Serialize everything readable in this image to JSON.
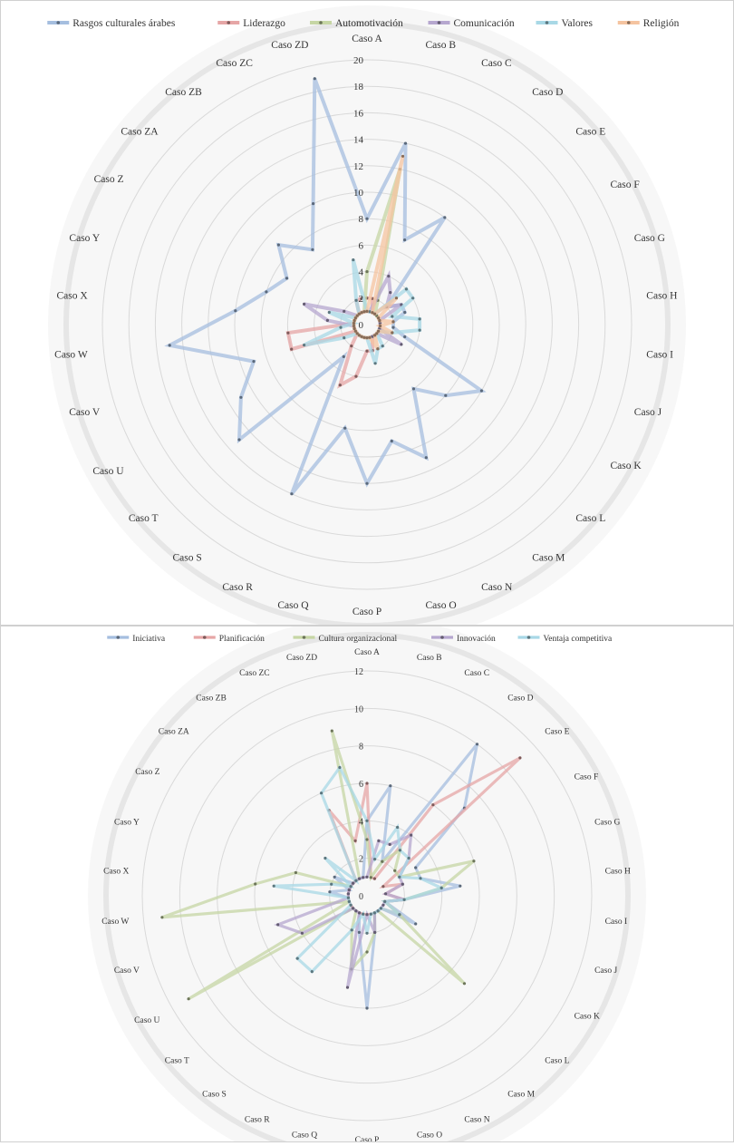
{
  "cases": [
    "Caso A",
    "Caso B",
    "Caso C",
    "Caso D",
    "Caso E",
    "Caso F",
    "Caso G",
    "Caso H",
    "Caso I",
    "Caso J",
    "Caso K",
    "Caso L",
    "Caso M",
    "Caso N",
    "Caso O",
    "Caso P",
    "Caso Q",
    "Caso R",
    "Caso S",
    "Caso T",
    "Caso U",
    "Caso V",
    "Caso W",
    "Caso X",
    "Caso Y",
    "Caso Z",
    "Caso ZA",
    "Caso ZB",
    "Caso ZC",
    "Caso ZD"
  ],
  "chart_data": [
    {
      "type": "radar",
      "rmax": 20,
      "ticks": [
        0,
        2,
        4,
        6,
        8,
        10,
        12,
        14,
        16,
        18,
        20
      ],
      "grid": true,
      "legend_position": "top",
      "series": [
        {
          "name": "Rasgos culturales árabes",
          "color": "#a5bedf",
          "values": [
            8,
            14,
            7,
            10,
            2,
            3,
            3,
            2,
            2,
            3,
            10,
            8,
            6,
            11,
            9,
            12,
            8,
            14,
            3,
            13,
            11,
            9,
            15,
            10,
            8,
            7,
            9,
            7,
            10,
            19
          ]
        },
        {
          "name": "Liderazgo",
          "color": "#e6a6a6",
          "values": [
            2,
            2,
            1,
            1,
            1,
            1,
            1,
            1,
            1,
            1,
            1,
            1,
            1,
            1,
            2,
            2,
            4,
            5,
            2,
            1,
            1,
            6,
            6,
            1,
            1,
            1,
            1,
            1,
            2,
            2
          ]
        },
        {
          "name": "Automotivación",
          "color": "#c6d6a4",
          "values": [
            4,
            12,
            2,
            1,
            1,
            1,
            1,
            1,
            1,
            1,
            1,
            1,
            1,
            1,
            1,
            1,
            1,
            1,
            1,
            1,
            1,
            1,
            1,
            1,
            1,
            1,
            1,
            1,
            1,
            1
          ]
        },
        {
          "name": "Comunicación",
          "color": "#b6a7cf",
          "values": [
            1,
            1,
            4,
            3,
            2,
            3,
            1,
            1,
            1,
            1,
            3,
            1,
            1,
            1,
            1,
            1,
            1,
            1,
            1,
            1,
            1,
            1,
            1,
            3,
            5,
            2,
            1,
            1,
            1,
            1
          ]
        },
        {
          "name": "Valores",
          "color": "#a8d8e6",
          "values": [
            1,
            1,
            1,
            1,
            4,
            4,
            2,
            4,
            4,
            2,
            1,
            1,
            2,
            2,
            3,
            1,
            1,
            1,
            1,
            1,
            2,
            5,
            2,
            1,
            3,
            1,
            1,
            1,
            2,
            5
          ]
        },
        {
          "name": "Religión",
          "color": "#f5c4a0",
          "values": [
            1,
            13,
            1,
            1,
            3,
            1,
            1,
            2,
            1,
            2,
            1,
            1,
            1,
            2,
            1,
            1,
            1,
            1,
            1,
            1,
            1,
            1,
            1,
            1,
            1,
            1,
            1,
            1,
            1,
            1
          ]
        }
      ]
    },
    {
      "type": "radar",
      "rmax": 12,
      "ticks": [
        0,
        2,
        4,
        6,
        8,
        10,
        12
      ],
      "grid": true,
      "legend_position": "top",
      "series": [
        {
          "name": "Iniciativa",
          "color": "#a5bedf",
          "values": [
            4,
            6,
            2,
            10,
            7,
            3,
            3,
            5,
            2,
            1,
            3,
            1,
            1,
            1,
            2,
            6,
            2,
            1,
            1,
            1,
            1,
            1,
            1,
            2,
            1,
            2,
            1,
            1,
            1,
            1
          ]
        },
        {
          "name": "Planificación",
          "color": "#e6a6a6",
          "values": [
            6,
            1,
            1,
            6,
            11,
            1,
            2,
            1,
            2,
            1,
            2,
            1,
            1,
            1,
            1,
            1,
            1,
            1,
            1,
            1,
            1,
            1,
            1,
            1,
            1,
            1,
            1,
            1,
            5,
            3
          ]
        },
        {
          "name": "Cultura organizacional",
          "color": "#c6d6a4",
          "values": [
            3,
            1,
            2,
            3,
            2,
            2,
            6,
            4,
            2,
            1,
            2,
            7,
            1,
            1,
            2,
            3,
            4,
            2,
            1,
            1,
            11,
            1,
            11,
            6,
            4,
            1,
            1,
            1,
            1,
            9
          ]
        },
        {
          "name": "Innovación",
          "color": "#b6a7cf",
          "values": [
            1,
            3,
            3,
            4,
            3,
            2,
            2,
            1,
            2,
            1,
            1,
            1,
            1,
            1,
            2,
            1,
            5,
            1,
            1,
            1,
            4,
            5,
            1,
            1,
            1,
            1,
            1,
            1,
            1,
            1
          ]
        },
        {
          "name": "Ventaja competitiva",
          "color": "#a8d8e6",
          "values": [
            4,
            2,
            4,
            3,
            3,
            2,
            3,
            4,
            2,
            1,
            2,
            1,
            1,
            1,
            1,
            2,
            1,
            2,
            5,
            5,
            1,
            1,
            1,
            5,
            2,
            1,
            3,
            1,
            6,
            7
          ]
        }
      ]
    }
  ]
}
